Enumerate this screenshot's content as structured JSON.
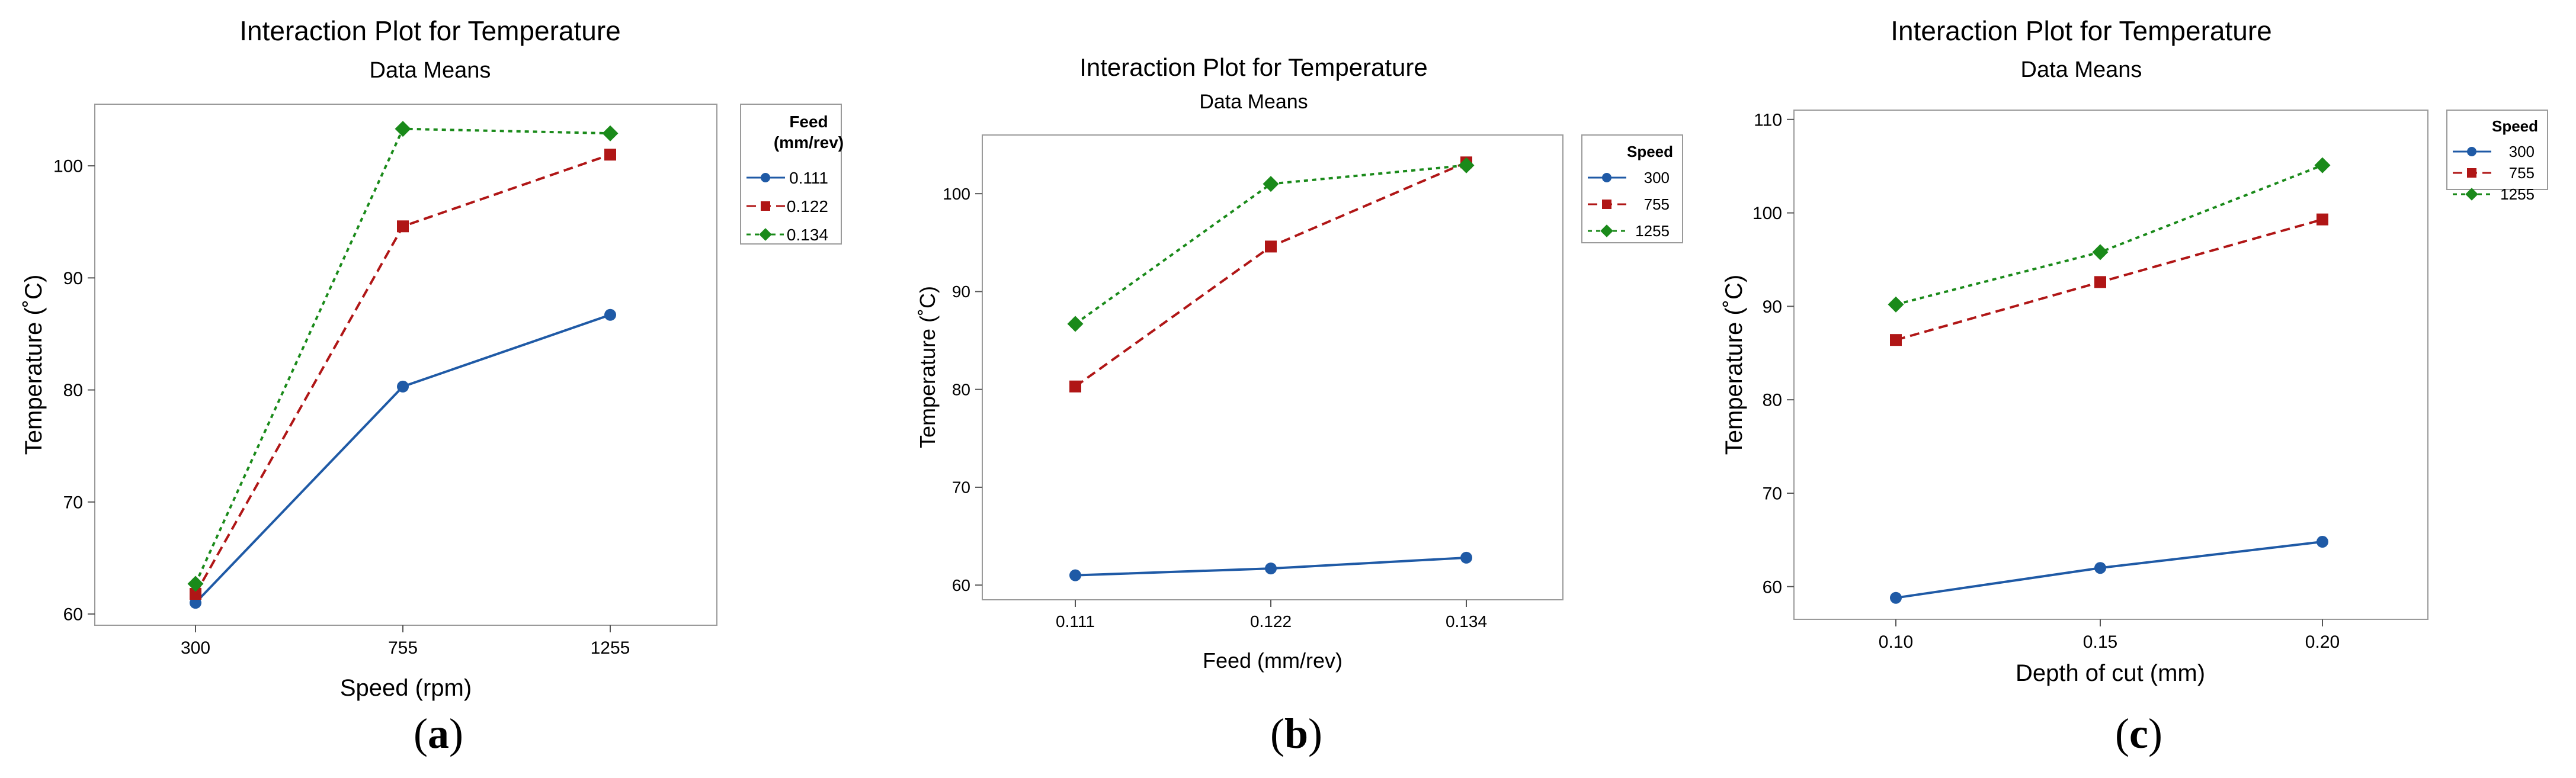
{
  "chart_data": [
    {
      "type": "line",
      "title": "Interaction Plot for Temperature",
      "subtitle": "Data Means",
      "xlabel": "Speed (rpm)",
      "ylabel": "Temperature (˚C)",
      "categories": [
        "300",
        "755",
        "1255"
      ],
      "ylim": [
        59,
        105.5
      ],
      "yticks": [
        60,
        70,
        80,
        90,
        100
      ],
      "legend": {
        "title_lines": [
          "Feed",
          "(mm/rev)"
        ],
        "position": "top-right"
      },
      "series": [
        {
          "name": "0.111",
          "color": "#1f5aa6",
          "marker": "circle",
          "dash": "solid",
          "values": [
            61.0,
            80.3,
            86.7
          ]
        },
        {
          "name": "0.122",
          "color": "#b01616",
          "marker": "square",
          "dash": "dashed",
          "values": [
            61.8,
            94.6,
            101.0
          ]
        },
        {
          "name": "0.134",
          "color": "#1a8a1a",
          "marker": "diamond",
          "dash": "dotted",
          "values": [
            62.7,
            103.3,
            102.9
          ]
        }
      ],
      "caption": "a"
    },
    {
      "type": "line",
      "title": "Interaction Plot for Temperature",
      "subtitle": "Data Means",
      "xlabel": "Feed (mm/rev)",
      "ylabel": "Temperature (˚C)",
      "categories": [
        "0.111",
        "0.122",
        "0.134"
      ],
      "ylim": [
        58.5,
        106
      ],
      "yticks": [
        60,
        70,
        80,
        90,
        100
      ],
      "legend": {
        "title_lines": [
          "Speed"
        ],
        "position": "top-right"
      },
      "series": [
        {
          "name": "300",
          "color": "#1f5aa6",
          "marker": "circle",
          "dash": "solid",
          "values": [
            61.0,
            61.7,
            62.8
          ]
        },
        {
          "name": "755",
          "color": "#b01616",
          "marker": "square",
          "dash": "dashed",
          "values": [
            80.3,
            94.6,
            103.2
          ]
        },
        {
          "name": "1255",
          "color": "#1a8a1a",
          "marker": "diamond",
          "dash": "dotted",
          "values": [
            86.7,
            101.0,
            102.9
          ]
        }
      ],
      "caption": "b"
    },
    {
      "type": "line",
      "title": "Interaction Plot for Temperature",
      "subtitle": "Data Means",
      "xlabel": "Depth of cut (mm)",
      "ylabel": "Temperature (˚C)",
      "categories": [
        "0.10",
        "0.15",
        "0.20"
      ],
      "ylim": [
        56.5,
        111
      ],
      "yticks": [
        60,
        70,
        80,
        90,
        100,
        110
      ],
      "legend": {
        "title_lines": [
          "Speed"
        ],
        "position": "top-right"
      },
      "series": [
        {
          "name": "300",
          "color": "#1f5aa6",
          "marker": "circle",
          "dash": "solid",
          "values": [
            58.8,
            62.0,
            64.8
          ]
        },
        {
          "name": "755",
          "color": "#b01616",
          "marker": "square",
          "dash": "dashed",
          "values": [
            86.4,
            92.6,
            99.3
          ]
        },
        {
          "name": "1255",
          "color": "#1a8a1a",
          "marker": "diamond",
          "dash": "dotted",
          "values": [
            90.2,
            95.8,
            105.1
          ]
        }
      ],
      "caption": "c"
    }
  ]
}
